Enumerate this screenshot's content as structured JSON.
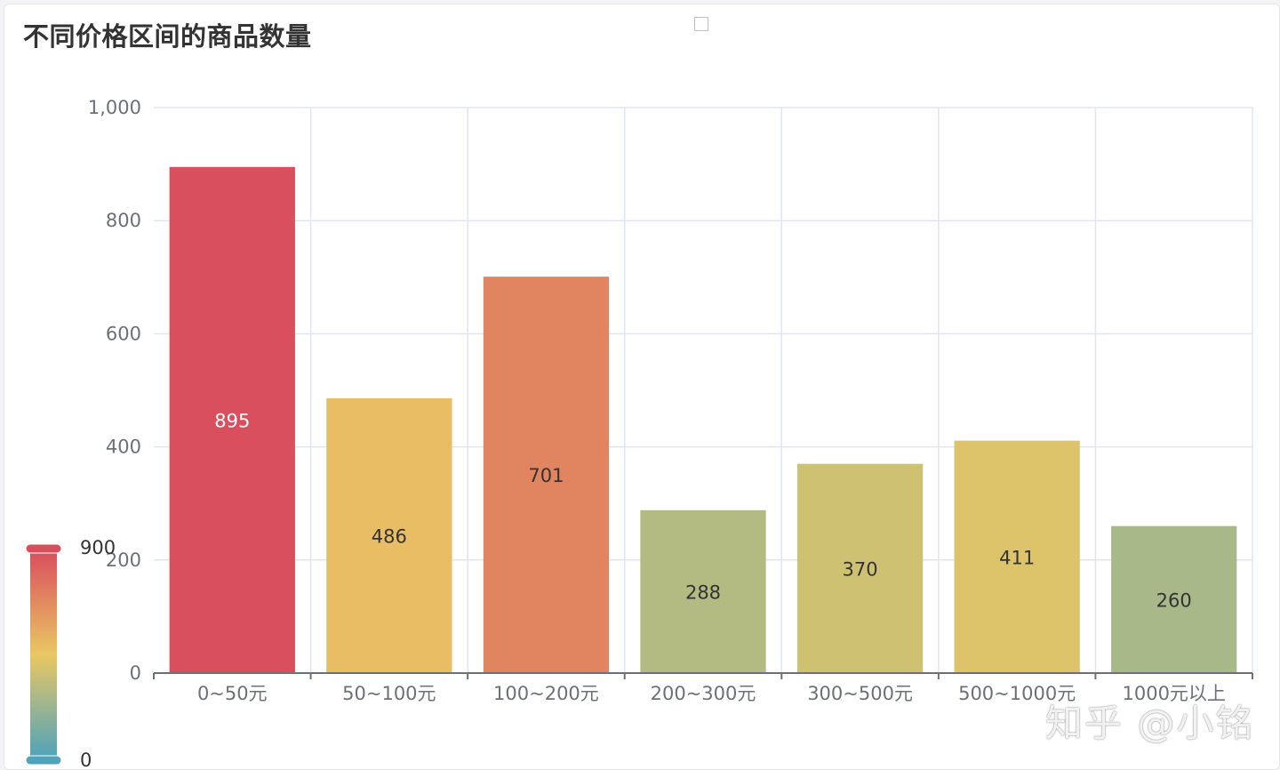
{
  "title": "不同价格区间的商品数量",
  "watermark": "知乎 @小铭",
  "chart_data": {
    "type": "bar",
    "categories": [
      "0~50元",
      "50~100元",
      "100~200元",
      "200~300元",
      "300~500元",
      "500~1000元",
      "1000元以上"
    ],
    "values": [
      895,
      486,
      701,
      288,
      370,
      411,
      260
    ],
    "xlabel": "",
    "ylabel": "",
    "ylim": [
      0,
      1000
    ],
    "yticks": [
      "0",
      "200",
      "400",
      "600",
      "800",
      "1,000"
    ],
    "grid": true,
    "data_labels": [
      "895",
      "486",
      "701",
      "288",
      "370",
      "411",
      "260"
    ],
    "visual_map": {
      "min": 0,
      "max": 900,
      "min_label": "0",
      "max_label": "900",
      "colors": [
        "#50a3ba",
        "#eac763",
        "#d94e5d"
      ]
    }
  }
}
